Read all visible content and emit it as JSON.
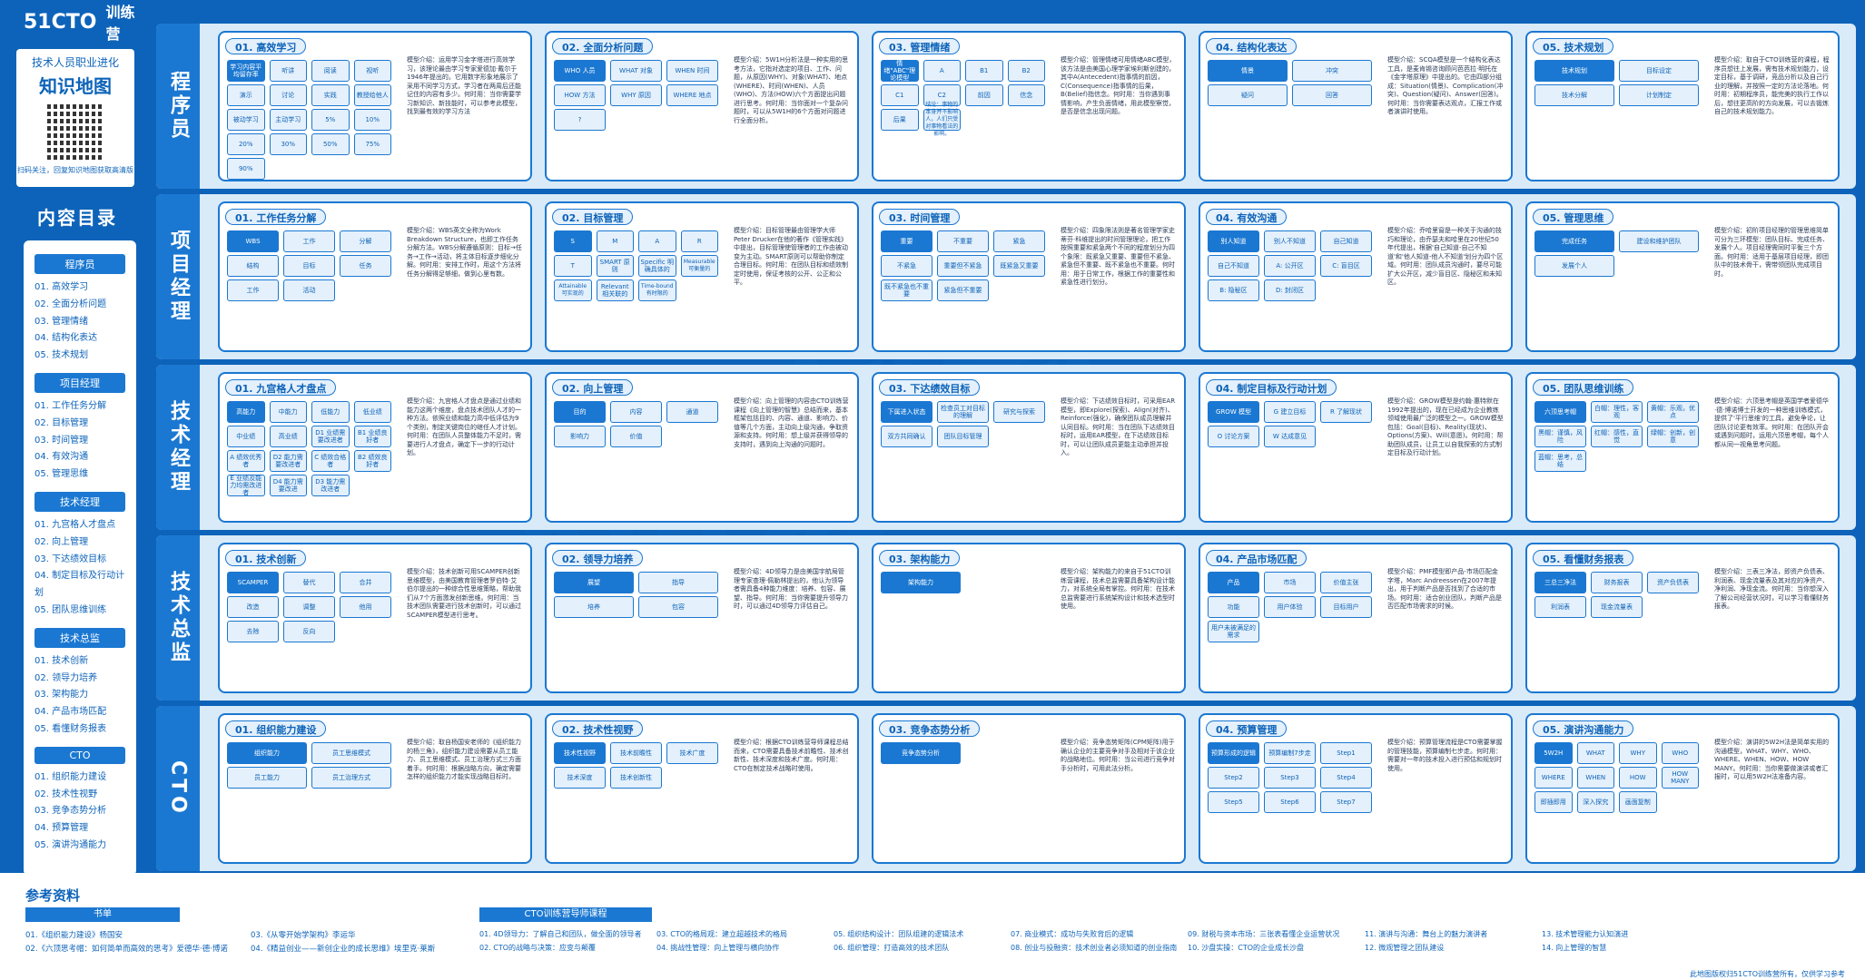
{
  "header": {
    "logo_51cto": "51CTO",
    "logo_camp": "训练营"
  },
  "knowledge_map": {
    "subtitle": "技术人员职业进化",
    "title": "知识地图",
    "qr_caption": "扫码关注，回复知识地图获取高清版"
  },
  "toc": {
    "title": "内容目录",
    "groups": [
      {
        "label": "程序员",
        "items": [
          "01. 高效学习",
          "02. 全面分析问题",
          "03. 管理情绪",
          "04. 结构化表达",
          "05. 技术规划"
        ]
      },
      {
        "label": "项目经理",
        "items": [
          "01. 工作任务分解",
          "02. 目标管理",
          "03. 时间管理",
          "04. 有效沟通",
          "05. 管理思维"
        ]
      },
      {
        "label": "技术经理",
        "items": [
          "01. 九宫格人才盘点",
          "02. 向上管理",
          "03. 下达绩效目标",
          "04. 制定目标及行动计划",
          "05. 团队思维训练"
        ]
      },
      {
        "label": "技术总监",
        "items": [
          "01. 技术创新",
          "02. 领导力培养",
          "03. 架构能力",
          "04. 产品市场匹配",
          "05. 看懂财务报表"
        ]
      },
      {
        "label": "CTO",
        "items": [
          "01. 组织能力建设",
          "02. 技术性视野",
          "03. 竞争态势分析",
          "04. 预算管理",
          "05. 演讲沟通能力"
        ]
      }
    ]
  },
  "rows": [
    {
      "label": "程序员",
      "cards": [
        {
          "title": "01. 高效学习",
          "desc": "模型介绍：运用学习金字塔进行高效学习，该理论最由学习专家爱德加·戴尔于1946年提出的。它用数字形象地展示了采用不同学习方式，学习者在两周后还能记住的内容有多少。何时用：当你需要学习新知识、新技能时，可以参考此模型，找到最有效的学习方法",
          "labels": [
            "学习内容平均留存率",
            "听讲",
            "阅读",
            "视听",
            "演示",
            "讨论",
            "实践",
            "教授给他人",
            "被动学习",
            "主动学习",
            "5%",
            "10%",
            "20%",
            "30%",
            "50%",
            "75%",
            "90%"
          ]
        },
        {
          "title": "02. 全面分析问题",
          "desc": "模型介绍：5W1H分析法是一种实用的思考方法，它指对选定的项目、工作、问题，从原因(WHY)、对象(WHAT)、地点(WHERE)、时间(WHEN)、人员(WHO)、方法(HOW)六个方面提出问题进行思考。何时用：当你面对一个复杂问题时，可以从5W1H的6个方面对问题进行全面分析。",
          "labels": [
            "WHO 人员",
            "WHAT 对象",
            "WHEN 时间",
            "HOW 方法",
            "WHY 原因",
            "WHERE 地点",
            "?"
          ]
        },
        {
          "title": "03. 管理情绪",
          "desc": "模型介绍：管理情绪可用情绪ABC模型，该方法是由美国心理学家埃利斯创建的，其中A(Antecedent)指事情的前因，C(Consequence)指事情的后果，B(Belief)指信念。何时用：当你遇到事情影响，产生负面情绪，用此模型察觉，是否是信念出现问题。",
          "labels": [
            "情绪\"ABC\"理论模型",
            "A",
            "B1",
            "B2",
            "C1",
            "C2",
            "前因",
            "信念",
            "后果",
            "结论：事物的本身并不影响人，人们只受对事物看法的影响。"
          ]
        },
        {
          "title": "04. 结构化表达",
          "desc": "模型介绍：SCQA模型是一个结构化表达工具，是麦肯锡咨询顾问芭芭拉·明托在《金字塔原理》中提出的。它由四部分组成：Situation(情景)、Complication(冲突)、Question(疑问)、Answer(回答)。何时用：当你需要表达观点，汇报工作或者演讲时使用。",
          "labels": [
            "情景",
            "冲突",
            "疑问",
            "回答"
          ]
        },
        {
          "title": "05. 技术规划",
          "desc": "模型介绍：取自于CTO训练营的课程，程序员想往上发展，需有技术规划能力，设定目标，基于调研，竞品分析以及自己行业的理解，并按照一定的方法论落地。何时用：初期程序员，能完美的执行工作以后，想往更高阶的方向发展，可以去锻炼自己的技术规划能力。",
          "labels": [
            "技术规划",
            "目标设定",
            "技术分解",
            "计划制定"
          ]
        }
      ]
    },
    {
      "label": "项目经理",
      "cards": [
        {
          "title": "01. 工作任务分解",
          "desc": "模型介绍：WBS英文全称为Work Breakdown Structure，也即工作任务分解方法。WBS分解遵循原则：目标→任务→工作→活动，将主体目标逐步细化分解。何时用：安排工作时，用这个方法将任务分解得足够细，做到心里有数。",
          "labels": [
            "WBS",
            "工作",
            "分解",
            "结构",
            "目标",
            "任务",
            "工作",
            "活动"
          ]
        },
        {
          "title": "02. 目标管理",
          "desc": "模型介绍：目标管理最由管理学大师Peter Drucker在他的著作《管理实践》中提出，目标管理使管理者的工作由被动变为主动。SMART原则可以帮助你制定合理目标。何时用：在团队目标和绩效制定时使用，保证考核的公开、公正和公平。",
          "labels": [
            "S",
            "M",
            "A",
            "R",
            "T",
            "SMART 原则",
            "Specific 明确具体的",
            "Measurable 可衡量的",
            "Attainable 可实现的",
            "Relevant 相关联的",
            "Time-bound 有时限的"
          ]
        },
        {
          "title": "03. 时间管理",
          "desc": "模型介绍：四象限法则是著名管理学家史蒂芬·科维提出的时间管理理论，把工作按照重要和紧急两个不同的程度划分为四个象限：既紧急又重要、重要但不紧急、紧急但不重要、既不紧急也不重要。何时用：用于日常工作，根据工作的重要性和紧急性进行划分。",
          "labels": [
            "重要",
            "不重要",
            "紧急",
            "不紧急",
            "重要但不紧急",
            "既紧急又重要",
            "既不紧急也不重要",
            "紧急但不重要"
          ]
        },
        {
          "title": "04. 有效沟通",
          "desc": "模型介绍：乔哈里窗是一种关于沟通的技巧和理论，由乔瑟夫和哈里在20世纪50年代提出，根据'自己知道-自己不知道'和'他人知道-他人不知道'划分为四个区域。何时用：团队成员沟通时，要尽可能扩大公开区，减少盲目区、隐秘区和未知区。",
          "labels": [
            "别人知道",
            "别人不知道",
            "自己知道",
            "自己不知道",
            "A: 公开区",
            "C: 盲目区",
            "B: 隐秘区",
            "D: 封闭区"
          ]
        },
        {
          "title": "05. 管理思维",
          "desc": "模型介绍：初阶项目经理的管理思维简单可分为三环模型：团队目标、完成任务、发展个人。项目经理需同时平衡三个方面。何时用：适用于基层项目经理，即团队中的技术骨干，需带领团队完成项目时。",
          "labels": [
            "完成任务",
            "建设和维护团队",
            "发展个人"
          ]
        }
      ]
    },
    {
      "label": "技术经理",
      "cards": [
        {
          "title": "01. 九宫格人才盘点",
          "desc": "模型介绍：九宫格人才盘点是通过业绩和能力这两个维度，盘点技术团队人才的一种方法。依照业绩和能力高中低评估为9个类别，制定关键岗位的继任人才计划。何时用：在团队人员整体能力不足时，需要进行人才盘点，确定下一步的行动计划。",
          "labels": [
            "高能力",
            "中能力",
            "低能力",
            "低业绩",
            "中业绩",
            "高业绩",
            "D1 业绩需要改进者",
            "B1 业绩良好者",
            "A 绩效优秀者",
            "D2 能力需要改进者",
            "C 绩效合格者",
            "B2 绩效良好者",
            "E 业绩及能力均需改进者",
            "D4 能力需要改进",
            "D3 能力需改进者"
          ]
        },
        {
          "title": "02. 向上管理",
          "desc": "模型介绍：向上管理的内容由CTO训练营课程《向上管理的智慧》总结而来，基本框架包括目的、内容、通道、影响力、价值等几个方面，主动向上级沟通，争取资源和支持。何时用：想上级并获得领导的支持时，遇到向上沟通的问题时。",
          "labels": [
            "目的",
            "内容",
            "通道",
            "影响力",
            "价值"
          ]
        },
        {
          "title": "03. 下达绩效目标",
          "desc": "模型介绍：下达绩效目标时，可采用EAR模型，即Explore(探索)、Align(对齐)、Reinforce(强化)，确保团队成员理解并认同目标。何时用：当在团队下达绩效目标时，运用EAR模型，在下达绩效目标时，可以让团队成员更能主动承担并投入。",
          "labels": [
            "下属进入状态",
            "检查员工对目标的理解",
            "研究与探索",
            "双方共同确认",
            "团队目标管理"
          ]
        },
        {
          "title": "04. 制定目标及行动计划",
          "desc": "模型介绍：GROW模型是约翰·惠特默在1992年提出的，现在已经成为企业教练领域使用最广泛的模型之一。GROW模型包括：Goal(目标)、Reality(现状)、Options(方案)、Will(意愿)。何时用：帮助团队成员，让员工以自我探索的方式制定目标及行动计划。",
          "labels": [
            "GROW 模型",
            "G 建立目标",
            "R 了解现状",
            "O 讨论方案",
            "W 达成意见"
          ]
        },
        {
          "title": "05. 团队思维训练",
          "desc": "模型介绍：六顶思考帽是英国学者爱德华·德·博诺博士开发的一种思维训练模式，提供了'平行思维'的工具，避免争论，让团队讨论更有效率。何时用：在团队开会或遇到问题时，运用六顶思考帽，每个人都从同一视角思考问题。",
          "labels": [
            "六顶思考帽",
            "白帽：理性，客观",
            "黄帽：乐观，优点",
            "黑帽：谨慎，风险",
            "红帽：感性，直觉",
            "绿帽：创新，创意",
            "蓝帽：思考，总结"
          ]
        }
      ]
    },
    {
      "label": "技术总监",
      "cards": [
        {
          "title": "01. 技术创新",
          "desc": "模型介绍：技术创新可用SCAMPER创新思维模型，由美国教育管理者罗伯特·艾伯尔提出的一种综合性思维策略，帮助我们从7个方面激发创新思维。何时用：当技术团队需要进行技术创新时，可以通过SCAMPER模型进行思考。",
          "labels": [
            "SCAMPER",
            "替代",
            "合并",
            "改造",
            "调整",
            "他用",
            "去除",
            "反向"
          ]
        },
        {
          "title": "02. 领导力培养",
          "desc": "模型介绍：4D领导力是由美国宇航局管理专家查理·佩勒林提出的，他认为领导者需具备4种能力维度：培养、包容、展望、指导。何时用：当你需要提升领导力时，可以通过4D领导力评估自己。",
          "labels": [
            "展望",
            "指导",
            "培养",
            "包容"
          ]
        },
        {
          "title": "03. 架构能力",
          "desc": "模型介绍：架构能力的来自于51CTO训练营课程，技术总监需要具备架构设计能力，对系统全局有掌控。何时用：在技术总监需要进行系统架构设计和技术选型时使用。",
          "labels": [
            "架构能力"
          ]
        },
        {
          "title": "04. 产品市场匹配",
          "desc": "模型介绍：PMF模型即产品-市场匹配金字塔，Marc Andreessen在2007年提出，用于判断产品是否找到了合适的市场。何时用：适合创业团队，判断产品是否匹配市场需求的时候。",
          "labels": [
            "产品",
            "市场",
            "价值主张",
            "功能",
            "用户体验",
            "目标用户",
            "用户未被满足的需求"
          ]
        },
        {
          "title": "05. 看懂财务报表",
          "desc": "模型介绍：三表三净法，即资产负债表、利润表、现金流量表及其对应的净资产、净利润、净现金流。何时用：当你想深入了解公司经营状况时，可以学习看懂财务报表。",
          "labels": [
            "三总三净法",
            "财务报表",
            "资产负债表",
            "利润表",
            "现金流量表"
          ]
        }
      ]
    },
    {
      "label": "CTO",
      "cards": [
        {
          "title": "01. 组织能力建设",
          "desc": "模型介绍：取自杨国安老师的《组织能力的杨三角》，组织能力建设需要从员工能力、员工思维模式、员工治理方式三方面着手。何时用：根据战略方向，确定需要怎样的组织能力才能实现战略目标时。",
          "labels": [
            "组织能力",
            "员工思维模式",
            "员工能力",
            "员工治理方式"
          ]
        },
        {
          "title": "02. 技术性视野",
          "desc": "模型介绍：根据CTO训练营导师课程总结而来，CTO需要具备技术前瞻性、技术创新性、技术深度和技术广度。何时用：CTO在制定技术战略时使用。",
          "labels": [
            "技术性视野",
            "技术前瞻性",
            "技术广度",
            "技术深度",
            "技术创新性"
          ]
        },
        {
          "title": "03. 竞争态势分析",
          "desc": "模型介绍：竞争态势矩阵(CPM矩阵)用于确认企业的主要竞争对手及相对于该企业的战略地位。何时用：当公司进行竞争对手分析时，可用此法分析。",
          "labels": [
            "竞争态势分析"
          ]
        },
        {
          "title": "04. 预算管理",
          "desc": "模型介绍：预算管理流程是CTO需要掌握的管理技能，预算编制七步走。何时用：需要对一年的技术投入进行预估和规划时使用。",
          "labels": [
            "预算形成的逻辑",
            "预算编制7步走",
            "Step1",
            "Step2",
            "Step3",
            "Step4",
            "Step5",
            "Step6",
            "Step7"
          ]
        },
        {
          "title": "05. 演讲沟通能力",
          "desc": "模型介绍：演讲的5W2H法是简单实用的沟通模型，WHAT、WHY、WHO、WHERE、WHEN、HOW、HOW MANY。何时用：当你需要做演讲或者汇报时，可以用5W2H法准备内容。",
          "labels": [
            "5W2H",
            "WHAT",
            "WHY",
            "WHO",
            "WHERE",
            "WHEN",
            "HOW",
            "HOW MANY",
            "即插即用",
            "深入探究",
            "画面复制"
          ]
        }
      ]
    }
  ],
  "references": {
    "title": "参考资料",
    "books_label": "书单",
    "camp_label": "CTO训练营导师课程",
    "books": [
      "01.《组织能力建设》杨国安",
      "02.《六顶思考帽：如何简单而高效的思考》爱德华·德·博诺",
      "03.《从零开始学架构》李运华",
      "04.《精益创业——新创企业的成长思维》埃里克·莱斯"
    ],
    "courses": [
      "01. 4D领导力：了解自己和团队，做全面的领导者",
      "02. CTO的战略与决策：应变与颠覆",
      "03. CTO的格局观：建立超越技术的格局",
      "04. 挑战性管理：向上管理与横向协作",
      "05. 组织结构设计：团队组建的逻辑法术",
      "06. 组织管理：打造高效的技术团队",
      "07. 商业模式：成功与失败背后的逻辑",
      "08. 创业与投融资：技术创业者必须知道的创业指南",
      "09. 财税与资本市场：三张表看懂企业运营状况",
      "10. 沙盘实操：CTO的企业成长沙盘",
      "11. 演讲与沟通：舞台上的魅力演讲者",
      "12. 微观管理之团队建设",
      "13. 技术管理能力认知演进",
      "14. 向上管理的智慧"
    ],
    "note": "此地图版权归51CTO训练营所有，仅供学习参考"
  },
  "watermark": "训练营"
}
